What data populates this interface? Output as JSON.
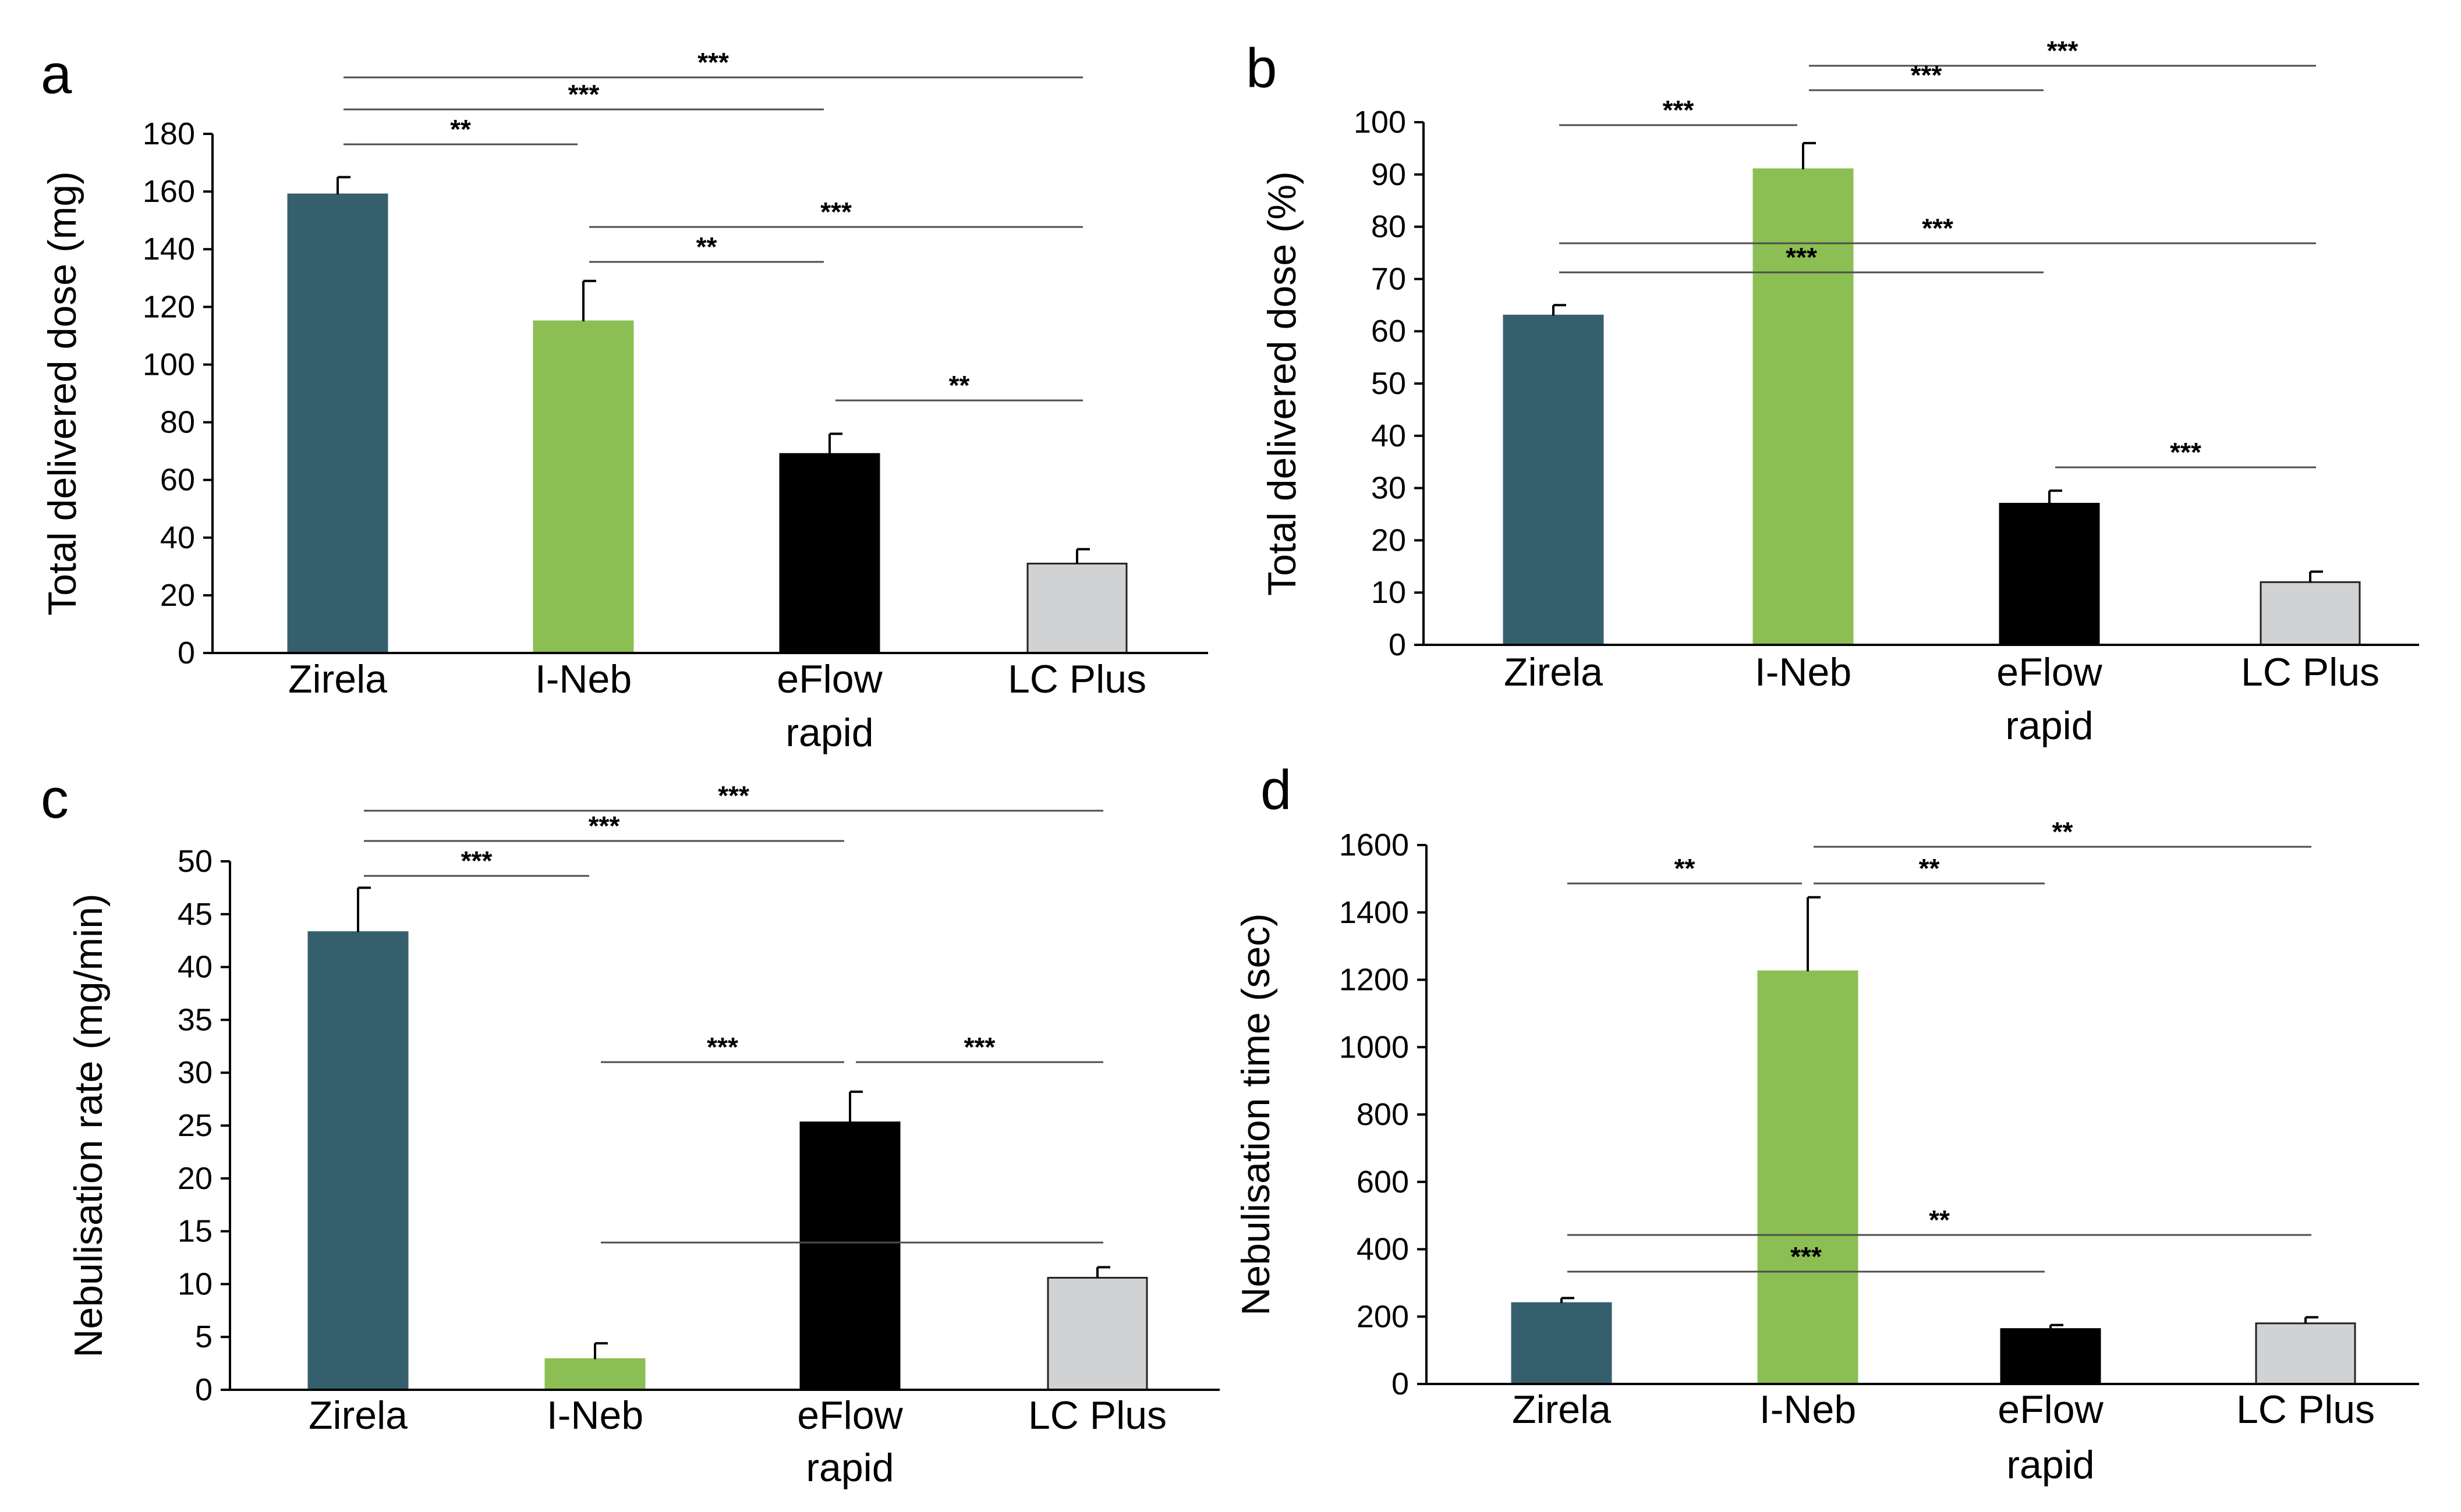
{
  "colors": {
    "Zirela": "#365f6e",
    "I-Neb": "#8cbf53",
    "eFlow rapid": "#000000",
    "LC Plus": "#d0d2d4",
    "axis": "#000000",
    "bracket": "#4d4d4d"
  },
  "chart_data": [
    {
      "panel": "a",
      "type": "bar",
      "categories": [
        [
          "Zirela"
        ],
        [
          "I-Neb"
        ],
        [
          "eFlow",
          "rapid"
        ],
        [
          "LC Plus"
        ]
      ],
      "values": [
        159,
        115,
        69,
        31
      ],
      "errors": [
        6,
        14,
        7,
        5
      ],
      "ylabel": "Total delivered dose (mg)",
      "ylim": [
        0,
        180
      ],
      "yticks": [
        0,
        20,
        40,
        60,
        80,
        100,
        120,
        140,
        160,
        180
      ],
      "grid": false,
      "significance": [
        {
          "from": 0,
          "to": 3,
          "label": "***"
        },
        {
          "from": 0,
          "to": 2,
          "label": "***"
        },
        {
          "from": 0,
          "to": 1,
          "label": "**"
        },
        {
          "from": 1,
          "to": 3,
          "label": "***"
        },
        {
          "from": 1,
          "to": 2,
          "label": "**"
        },
        {
          "from": 2,
          "to": 3,
          "label": "**"
        }
      ]
    },
    {
      "panel": "b",
      "type": "bar",
      "categories": [
        [
          "Zirela"
        ],
        [
          "I-Neb"
        ],
        [
          "eFlow",
          "rapid"
        ],
        [
          "LC Plus"
        ]
      ],
      "values": [
        63,
        91,
        27,
        12
      ],
      "errors": [
        2,
        5,
        2.5,
        2
      ],
      "ylabel": "Total delivered dose (%)",
      "ylim": [
        0,
        100
      ],
      "yticks": [
        0,
        10,
        20,
        30,
        40,
        50,
        60,
        70,
        80,
        90,
        100
      ],
      "grid": false,
      "significance": [
        {
          "from": 1,
          "to": 3,
          "label": "***"
        },
        {
          "from": 1,
          "to": 2,
          "label": "***"
        },
        {
          "from": 0,
          "to": 1,
          "label": "***"
        },
        {
          "from": 0,
          "to": 3,
          "label": "***"
        },
        {
          "from": 0,
          "to": 2,
          "label": "***"
        },
        {
          "from": 2,
          "to": 3,
          "label": "***"
        }
      ]
    },
    {
      "panel": "c",
      "type": "bar",
      "categories": [
        [
          "Zirela"
        ],
        [
          "I-Neb"
        ],
        [
          "eFlow",
          "rapid"
        ],
        [
          "LC Plus"
        ]
      ],
      "values": [
        43.3,
        2.9,
        25.3,
        10.6
      ],
      "errors": [
        4.2,
        1.5,
        2.9,
        1.0
      ],
      "ylabel": "Nebulisation rate (mg/min)",
      "ylim": [
        0,
        50
      ],
      "yticks": [
        0,
        5,
        10,
        15,
        20,
        25,
        30,
        35,
        40,
        45,
        50
      ],
      "grid": false,
      "significance": [
        {
          "from": 0,
          "to": 3,
          "label": "***"
        },
        {
          "from": 0,
          "to": 2,
          "label": "***"
        },
        {
          "from": 0,
          "to": 1,
          "label": "***"
        },
        {
          "from": 1,
          "to": 2,
          "label": "***"
        },
        {
          "from": 2,
          "to": 3,
          "label": "***"
        },
        {
          "from": 1,
          "to": 3,
          "label": "***"
        }
      ]
    },
    {
      "panel": "d",
      "type": "bar",
      "categories": [
        [
          "Zirela"
        ],
        [
          "I-Neb"
        ],
        [
          "eFlow",
          "rapid"
        ],
        [
          "LC Plus"
        ]
      ],
      "values": [
        240,
        1225,
        163,
        180
      ],
      "errors": [
        15,
        220,
        12,
        18
      ],
      "ylabel": "Nebulisation time (sec)",
      "ylim": [
        0,
        1600
      ],
      "yticks": [
        0,
        200,
        400,
        600,
        800,
        1000,
        1200,
        1400,
        1600
      ],
      "grid": false,
      "significance": [
        {
          "from": 1,
          "to": 3,
          "label": "**"
        },
        {
          "from": 0,
          "to": 1,
          "label": "**"
        },
        {
          "from": 1,
          "to": 2,
          "label": "**"
        },
        {
          "from": 0,
          "to": 3,
          "label": "**"
        },
        {
          "from": 0,
          "to": 2,
          "label": "***"
        }
      ]
    }
  ]
}
